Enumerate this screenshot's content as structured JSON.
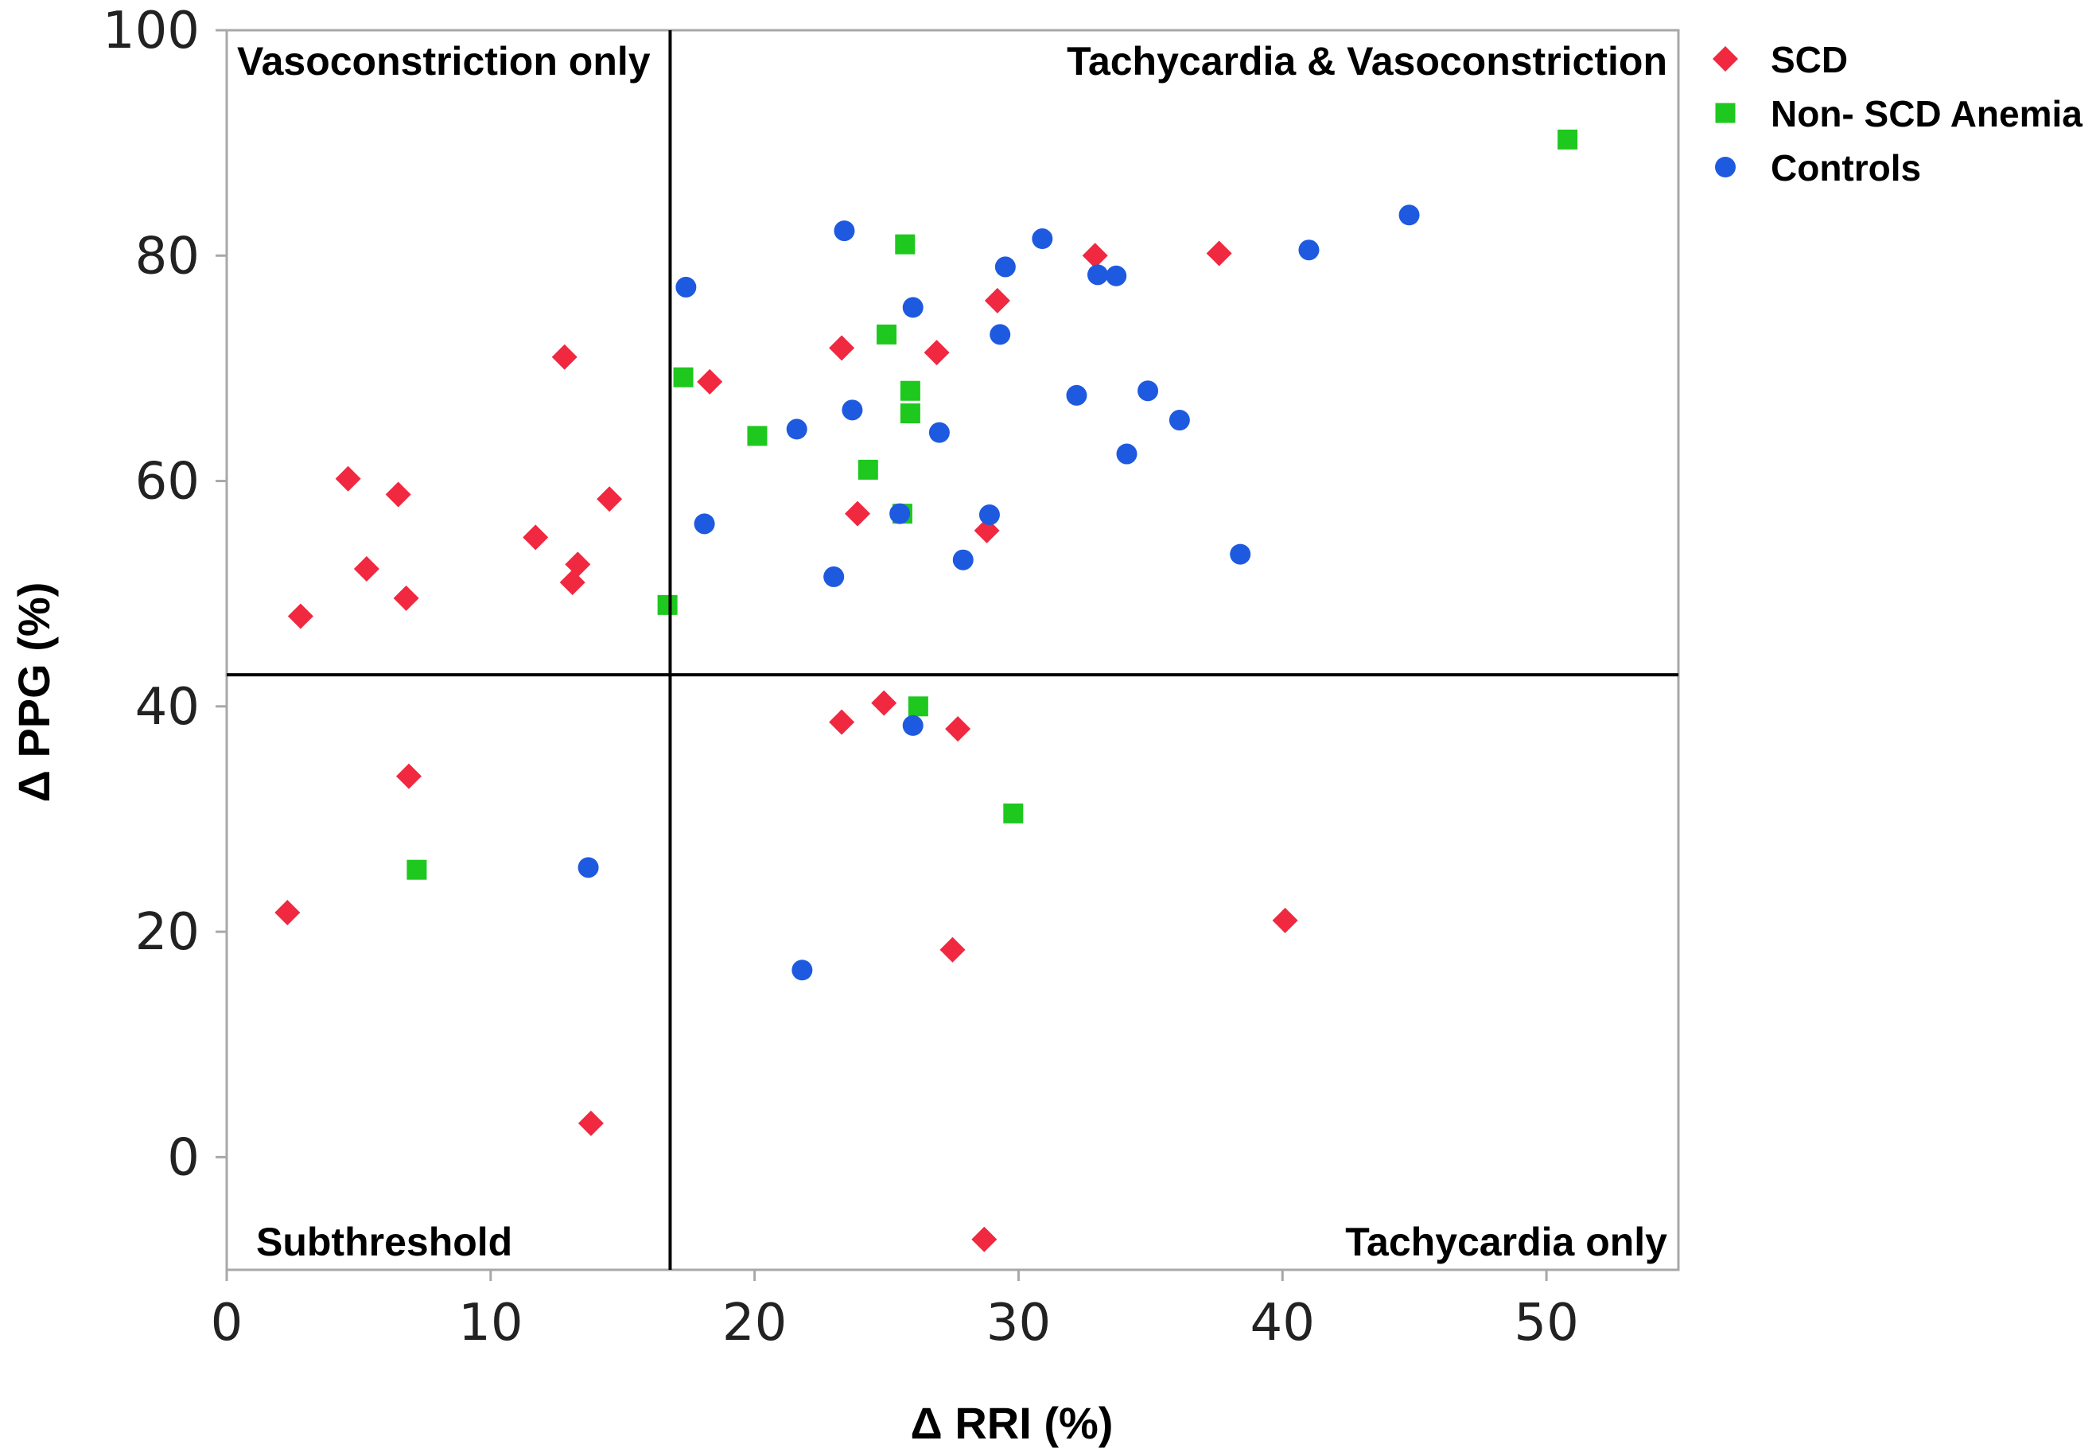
{
  "chart_data": {
    "type": "scatter",
    "title": "",
    "xlabel": "Δ RRI (%)",
    "ylabel": "Δ PPG (%)",
    "xlim": [
      0,
      55
    ],
    "ylim": [
      -10,
      100
    ],
    "xticks": [
      0,
      10,
      20,
      30,
      40,
      50
    ],
    "yticks": [
      0,
      20,
      40,
      60,
      80,
      100
    ],
    "grid": false,
    "legend_position": "outside-top-right",
    "thresholds": {
      "x": 16.8,
      "y": 42.8
    },
    "quadrant_labels": {
      "top_left": "Vasoconstriction only",
      "top_right": "Tachycardia & Vasoconstriction",
      "bottom_left": "Subthreshold",
      "bottom_right": "Tachycardia only"
    },
    "series": [
      {
        "name": "SCD",
        "marker": "diamond",
        "color": "#f02840",
        "points": [
          [
            2.8,
            48
          ],
          [
            4.6,
            60.2
          ],
          [
            5.3,
            52.2
          ],
          [
            6.5,
            58.8
          ],
          [
            6.8,
            49.6
          ],
          [
            6.9,
            33.8
          ],
          [
            2.3,
            21.7
          ],
          [
            11.7,
            55
          ],
          [
            12.8,
            71
          ],
          [
            13.1,
            51
          ],
          [
            13.3,
            52.6
          ],
          [
            14.5,
            58.4
          ],
          [
            13.8,
            3
          ],
          [
            18.3,
            68.8
          ],
          [
            23.3,
            71.8
          ],
          [
            23.9,
            57.1
          ],
          [
            23.3,
            38.6
          ],
          [
            24.9,
            40.3
          ],
          [
            26.9,
            71.4
          ],
          [
            27.5,
            18.4
          ],
          [
            27.7,
            38
          ],
          [
            28.8,
            55.6
          ],
          [
            29.2,
            76
          ],
          [
            28.7,
            -7.3
          ],
          [
            32.9,
            80
          ],
          [
            37.6,
            80.2
          ],
          [
            40.1,
            21
          ]
        ]
      },
      {
        "name": "Non- SCD Anemia",
        "marker": "square",
        "color": "#1ec81e",
        "points": [
          [
            7.2,
            25.5
          ],
          [
            16.7,
            49
          ],
          [
            17.3,
            69.2
          ],
          [
            20.1,
            64
          ],
          [
            24.3,
            61
          ],
          [
            25,
            73
          ],
          [
            25.6,
            57.1
          ],
          [
            25.7,
            81
          ],
          [
            25.9,
            68
          ],
          [
            25.9,
            66
          ],
          [
            26.2,
            40
          ],
          [
            29.8,
            30.5
          ],
          [
            50.8,
            90.3
          ]
        ]
      },
      {
        "name": "Controls",
        "marker": "circle",
        "color": "#1e5ae0",
        "points": [
          [
            13.7,
            25.7
          ],
          [
            17.4,
            77.2
          ],
          [
            18.1,
            56.2
          ],
          [
            21.6,
            64.6
          ],
          [
            21.8,
            16.6
          ],
          [
            23.0,
            51.5
          ],
          [
            23.4,
            82.2
          ],
          [
            23.7,
            66.3
          ],
          [
            25.5,
            57.1
          ],
          [
            26.0,
            75.4
          ],
          [
            26.0,
            38.3
          ],
          [
            27.0,
            64.3
          ],
          [
            27.9,
            53
          ],
          [
            28.9,
            57
          ],
          [
            29.3,
            73
          ],
          [
            29.5,
            79
          ],
          [
            30.9,
            81.5
          ],
          [
            32.2,
            67.6
          ],
          [
            33.0,
            78.3
          ],
          [
            33.7,
            78.2
          ],
          [
            34.1,
            62.4
          ],
          [
            34.9,
            68
          ],
          [
            36.1,
            65.4
          ],
          [
            38.4,
            53.5
          ],
          [
            41.0,
            80.5
          ],
          [
            44.8,
            83.6
          ]
        ]
      }
    ]
  }
}
